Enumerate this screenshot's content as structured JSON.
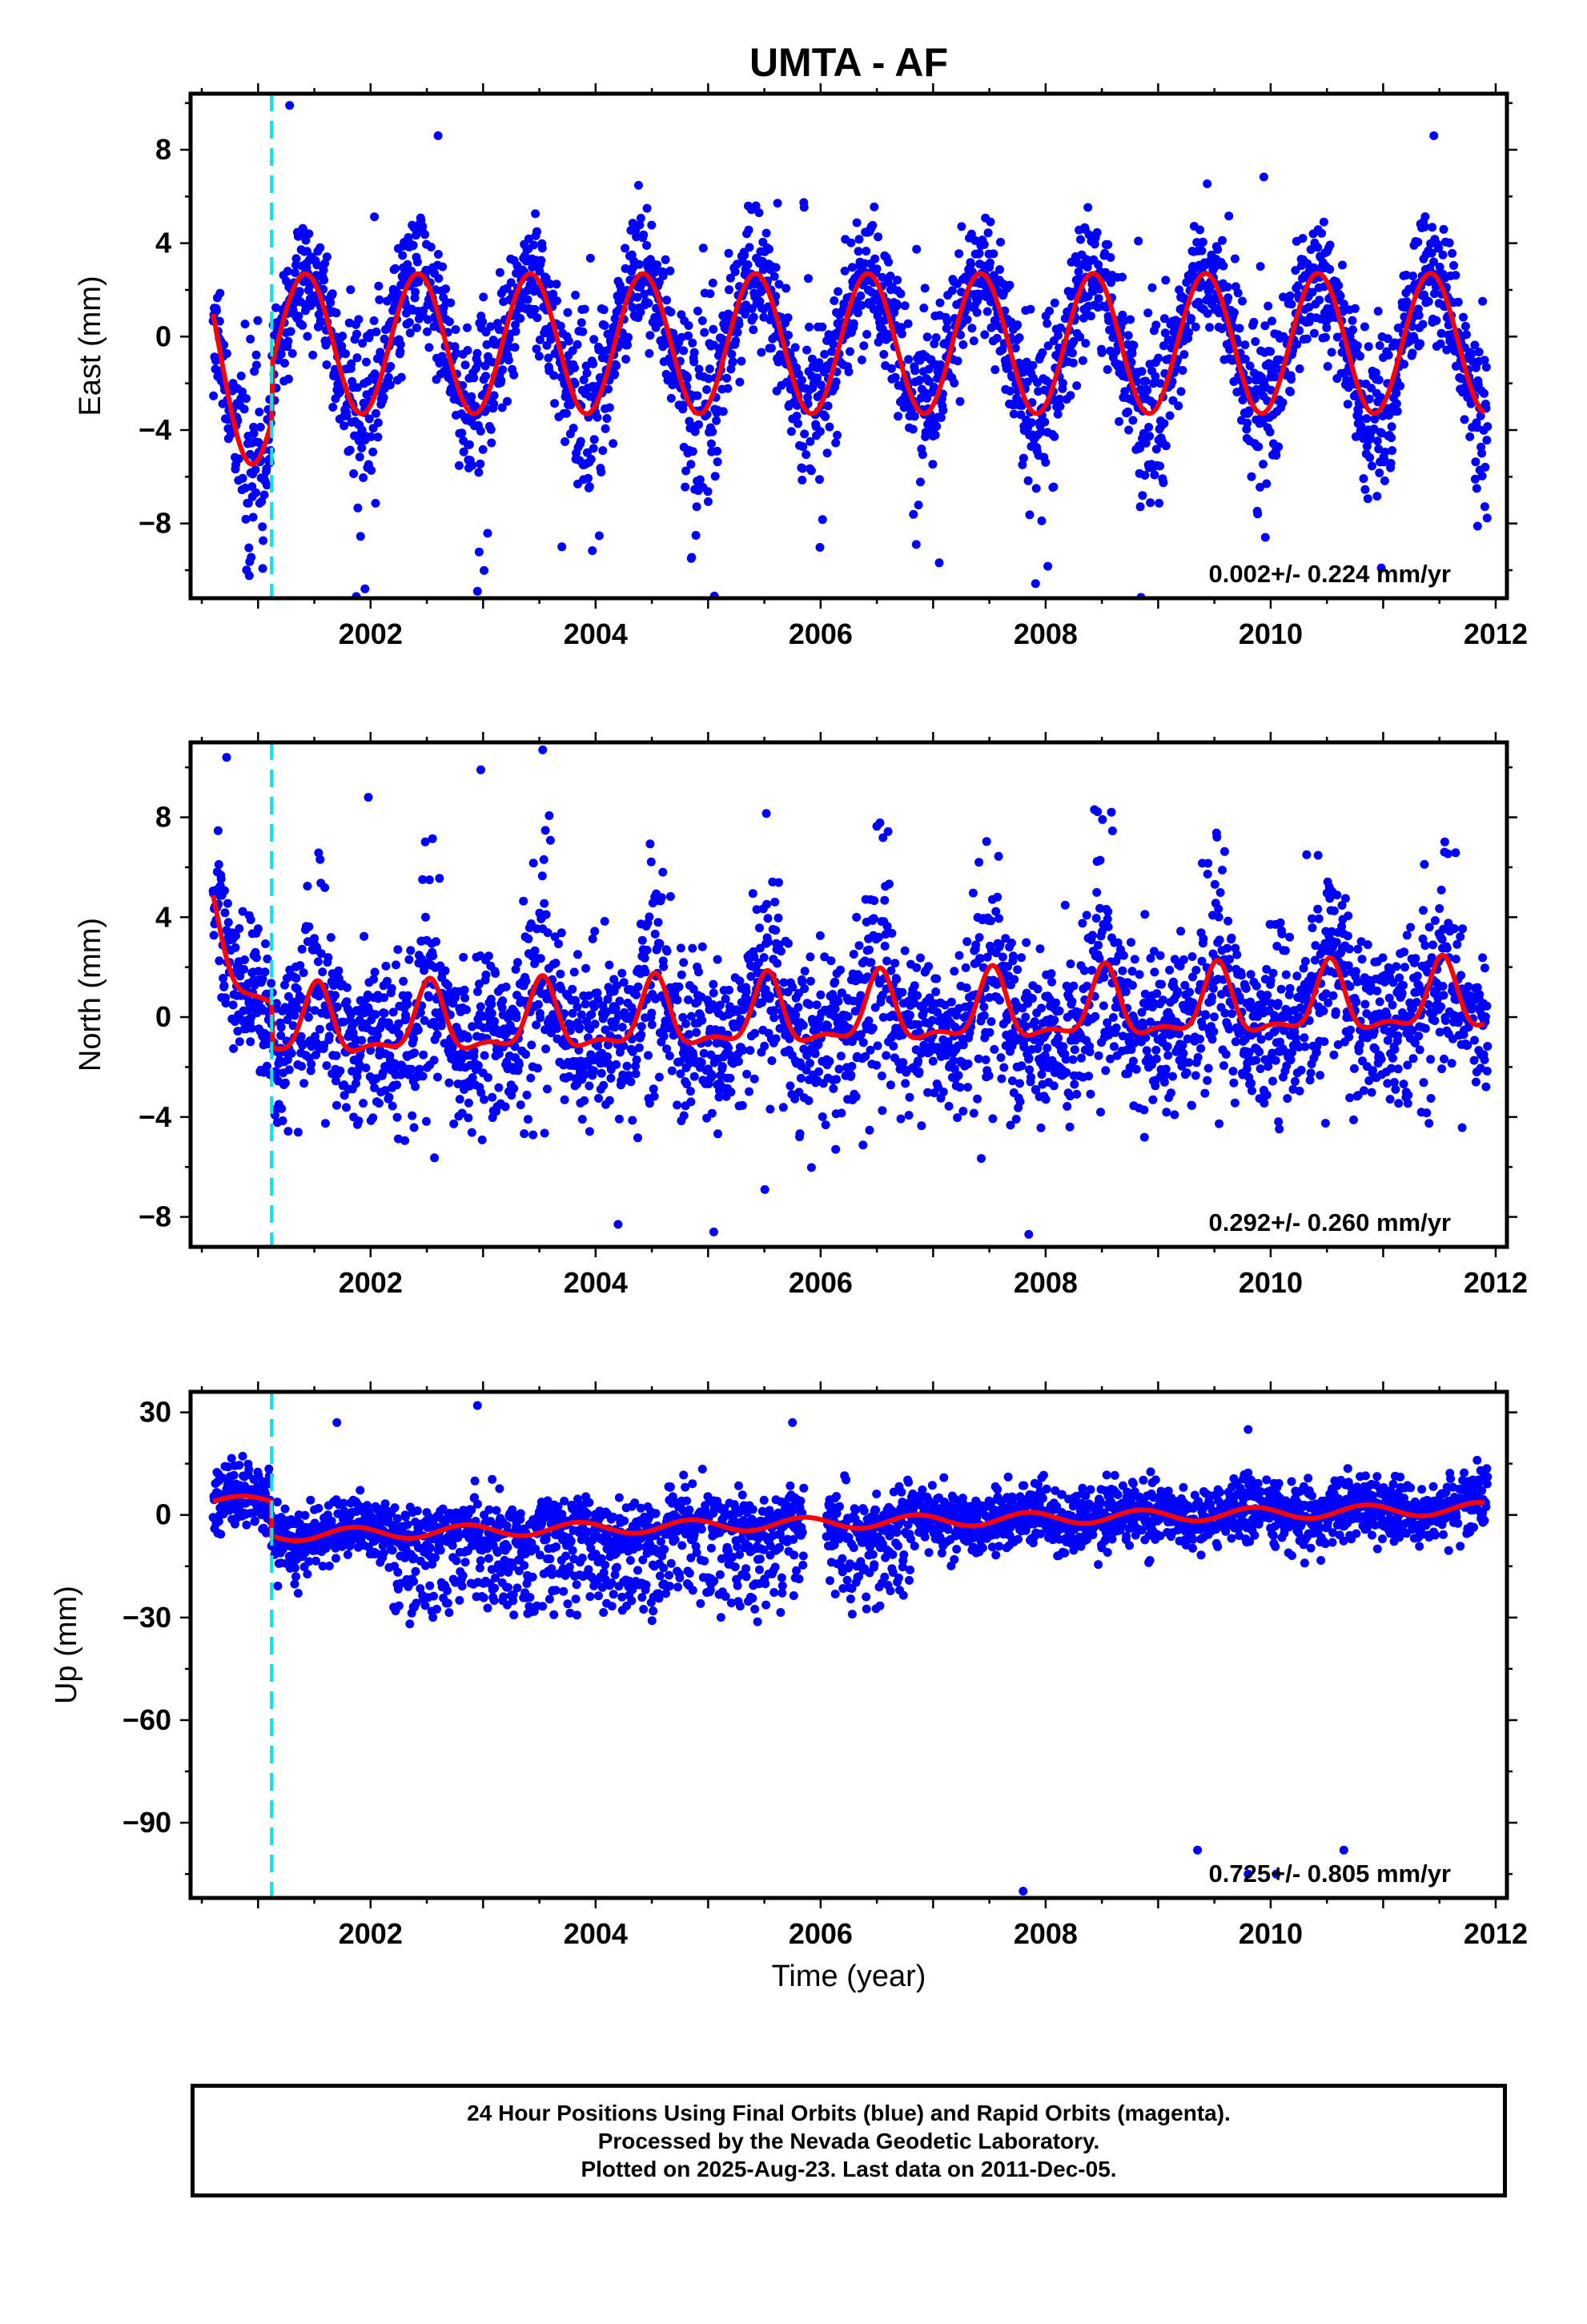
{
  "title": "UMTA - AF",
  "xlabel": "Time (year)",
  "footer": {
    "line1": "24 Hour Positions Using Final Orbits (blue) and Rapid Orbits (magenta).",
    "line2": "Processed by the Nevada Geodetic Laboratory.",
    "line3": "Plotted on 2025-Aug-23. Last data on 2011-Dec-05."
  },
  "colors": {
    "final_orbit_points": "#0000ff",
    "model_fit": "#ff0000",
    "equipment_change": "#00e5e5"
  },
  "chart_data": [
    {
      "type": "scatter",
      "component": "east",
      "ylabel": "East (mm)",
      "rate_label": "0.002+/- 0.224 mm/yr",
      "xlim": [
        2000.4,
        2012.1
      ],
      "ylim": [
        -11.2,
        10.4
      ],
      "x_ticks": [
        2002,
        2004,
        2006,
        2008,
        2010,
        2012
      ],
      "y_ticks": [
        -8,
        -4,
        0,
        4,
        8
      ],
      "y_tick_labels": [
        "−8",
        "−4",
        "0",
        "4",
        "8"
      ],
      "x_tick_labels": [
        "2002",
        "2004",
        "2006",
        "2008",
        "2010",
        "2012"
      ],
      "grid": false,
      "break_line_x": 2001.12,
      "fit": {
        "start": 2000.6,
        "end": 2011.9,
        "amplitude": 3.0,
        "peak_phase": 0.42,
        "offset": -0.3,
        "pre_break_offset": -2.4,
        "trend_mm_per_yr": 0.002
      },
      "scatter_model": {
        "start": 2000.6,
        "end": 2011.93,
        "noise_sd": 1.35,
        "extra_winter_noise": 2.2
      },
      "outliers": [
        {
          "x": 2001.28,
          "y": 9.9
        },
        {
          "x": 2002.6,
          "y": 8.6
        },
        {
          "x": 2011.45,
          "y": 8.6
        },
        {
          "x": 2002.95,
          "y": -10.9
        },
        {
          "x": 2001.95,
          "y": -10.8
        },
        {
          "x": 2003.7,
          "y": -9.0
        },
        {
          "x": 2004.85,
          "y": -9.5
        },
        {
          "x": 2006.85,
          "y": -8.9
        }
      ]
    },
    {
      "type": "scatter",
      "component": "north",
      "ylabel": "North (mm)",
      "rate_label": "0.292+/- 0.260 mm/yr",
      "xlim": [
        2000.4,
        2012.1
      ],
      "ylim": [
        -9.2,
        11.0
      ],
      "x_ticks": [
        2002,
        2004,
        2006,
        2008,
        2010,
        2012
      ],
      "y_ticks": [
        -8,
        -4,
        0,
        4,
        8
      ],
      "y_tick_labels": [
        "−8",
        "−4",
        "0",
        "4",
        "8"
      ],
      "x_tick_labels": [
        "2002",
        "2004",
        "2006",
        "2008",
        "2010",
        "2012"
      ],
      "grid": false,
      "break_line_x": 2001.12,
      "fit": {
        "start": 2000.6,
        "end": 2011.9,
        "offset": -1.8,
        "trend_mm_per_yr": 0.292,
        "bump_amplitude": 3.8,
        "bump_width": 0.13,
        "bump_peak_phase": 0.53,
        "pre_break_offset": 2.8
      },
      "scatter_model": {
        "start": 2000.6,
        "end": 2011.93,
        "noise_sd": 1.6,
        "extra_summer_noise": 1.8
      },
      "outliers": [
        {
          "x": 2000.72,
          "y": 10.4
        },
        {
          "x": 2003.53,
          "y": 10.7
        },
        {
          "x": 2002.98,
          "y": 9.9
        },
        {
          "x": 2001.98,
          "y": 8.8
        },
        {
          "x": 2004.2,
          "y": -8.3
        },
        {
          "x": 2005.05,
          "y": -8.6
        },
        {
          "x": 2007.85,
          "y": -8.7
        },
        {
          "x": 2010.32,
          "y": 6.5
        }
      ]
    },
    {
      "type": "scatter",
      "component": "up",
      "ylabel": "Up (mm)",
      "rate_label": "0.725+/- 0.805 mm/yr",
      "xlim": [
        2000.4,
        2012.1
      ],
      "ylim": [
        -112,
        36
      ],
      "x_ticks": [
        2002,
        2004,
        2006,
        2008,
        2010,
        2012
      ],
      "y_ticks": [
        -90,
        -60,
        -30,
        0,
        30
      ],
      "y_tick_labels": [
        "−90",
        "−60",
        "−30",
        "0",
        "30"
      ],
      "x_tick_labels": [
        "2002",
        "2004",
        "2006",
        "2008",
        "2010",
        "2012"
      ],
      "grid": false,
      "break_line_x": 2001.12,
      "fit": {
        "start": 2000.6,
        "end": 2011.9,
        "amplitude": 1.8,
        "peak_phase": 0.85,
        "trend_mm_per_yr": 0.725,
        "intercept_at_2001": -6.0,
        "pre_break_level": 4.0
      },
      "scatter_model": {
        "start": 2000.6,
        "end": 2011.93,
        "noise_sd": 4.5
      },
      "outliers": [
        {
          "x": 2009.35,
          "y": -98
        },
        {
          "x": 2010.65,
          "y": -98
        },
        {
          "x": 2009.8,
          "y": -105
        },
        {
          "x": 2010.05,
          "y": -105
        },
        {
          "x": 2007.8,
          "y": -110
        },
        {
          "x": 2002.95,
          "y": 32
        },
        {
          "x": 2005.75,
          "y": 27
        },
        {
          "x": 2001.7,
          "y": 27
        },
        {
          "x": 2009.8,
          "y": 25
        }
      ]
    }
  ]
}
